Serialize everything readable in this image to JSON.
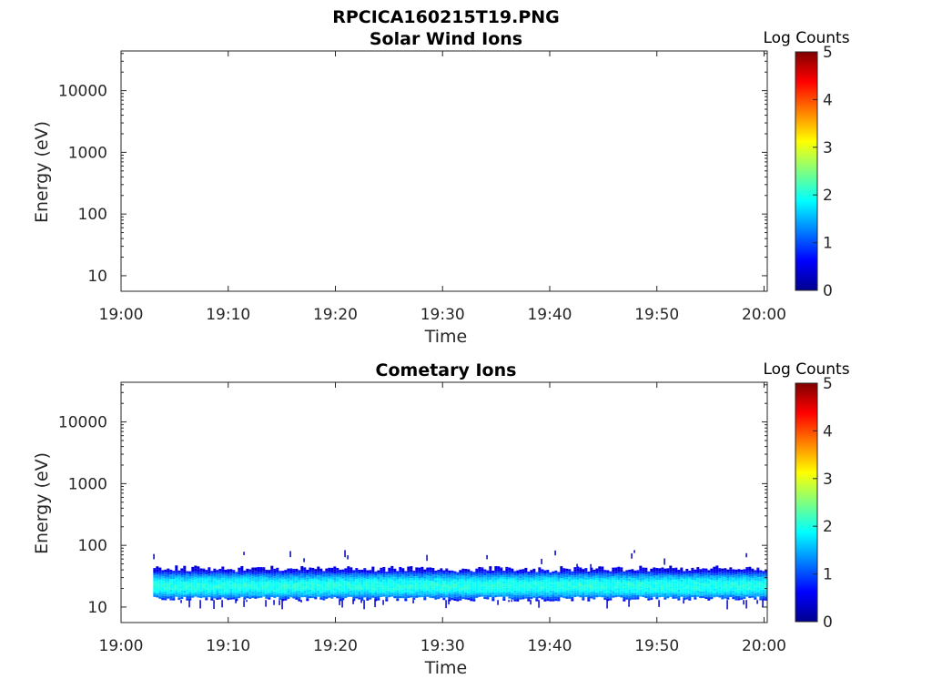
{
  "figure": {
    "title": "RPCICA160215T19.PNG"
  },
  "colors": {
    "axis": "#262626",
    "colormap": [
      "#00008f",
      "#0000ff",
      "#0080ff",
      "#00ffff",
      "#80ff80",
      "#ffff00",
      "#ff8000",
      "#ff0000",
      "#800000"
    ]
  },
  "chart_data": [
    {
      "type": "heatmap",
      "title": "Solar Wind Ions",
      "xlabel": "Time",
      "ylabel": "Energy (eV)",
      "x_ticks": [
        "19:00",
        "19:10",
        "19:20",
        "19:30",
        "19:40",
        "19:50",
        "20:00"
      ],
      "y_scale": "log",
      "y_ticks": [
        "10",
        "100",
        "1000",
        "10000"
      ],
      "colorbar": {
        "label": "Log Counts",
        "range": [
          0,
          5
        ],
        "ticks": [
          "0",
          "1",
          "2",
          "3",
          "4",
          "5"
        ]
      },
      "data": "empty"
    },
    {
      "type": "heatmap",
      "title": "Cometary Ions",
      "xlabel": "Time",
      "ylabel": "Energy (eV)",
      "x_ticks": [
        "19:00",
        "19:10",
        "19:20",
        "19:30",
        "19:40",
        "19:50",
        "20:00"
      ],
      "y_scale": "log",
      "y_ticks": [
        "10",
        "100",
        "1000",
        "10000"
      ],
      "colorbar": {
        "label": "Log Counts",
        "range": [
          0,
          5
        ],
        "ticks": [
          "0",
          "1",
          "2",
          "3",
          "4",
          "5"
        ]
      },
      "band": {
        "time_start": "19:03",
        "time_end": "20:00",
        "energy_min_eV": 13,
        "energy_max_eV": 40,
        "peak_energy_eV": 22,
        "peak_log_counts": 2.0,
        "edge_log_counts": 0.5
      }
    }
  ]
}
